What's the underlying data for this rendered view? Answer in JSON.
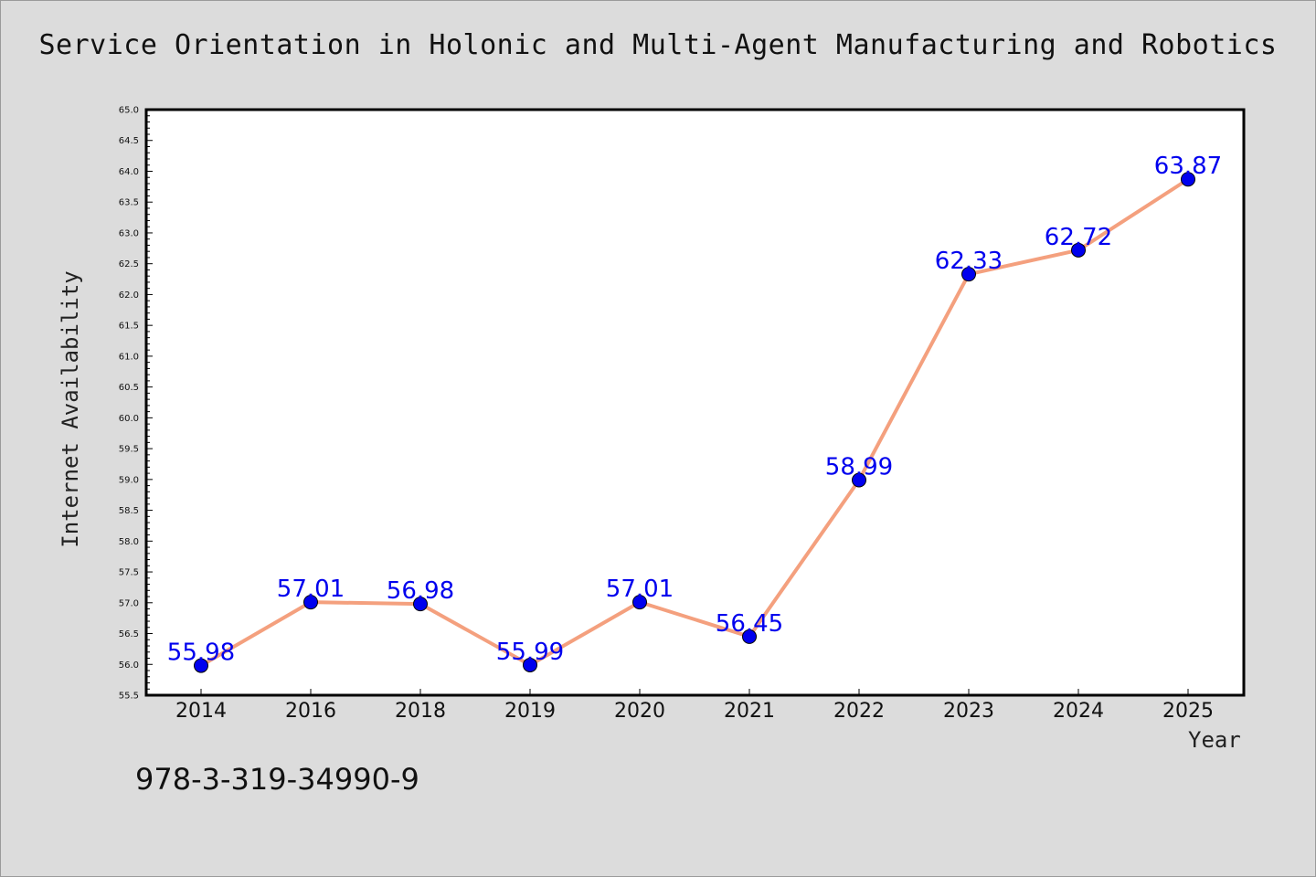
{
  "footer_code": "978-3-319-34990-9",
  "chart_data": {
    "type": "line",
    "title": "Service Orientation in Holonic and Multi-Agent Manufacturing and Robotics",
    "xlabel": "Year",
    "ylabel": "Internet Availability",
    "categories": [
      "2014",
      "2016",
      "2018",
      "2019",
      "2020",
      "2021",
      "2022",
      "2023",
      "2024",
      "2025"
    ],
    "series": [
      {
        "values": [
          55.98,
          57.01,
          56.98,
          55.99,
          57.01,
          56.45,
          58.99,
          62.33,
          62.72,
          63.87
        ],
        "labels": [
          "55.98",
          "57.01",
          "56.98",
          "55.99",
          "57.01",
          "56.45",
          "58.99",
          "62.33",
          "62.72",
          "63.87"
        ],
        "line_color": "#f4a07e",
        "marker_color": "#0000ee"
      }
    ],
    "ylim": [
      55.5,
      65.0
    ],
    "ytick_step": 0.5,
    "grid": false,
    "legend": "none"
  }
}
